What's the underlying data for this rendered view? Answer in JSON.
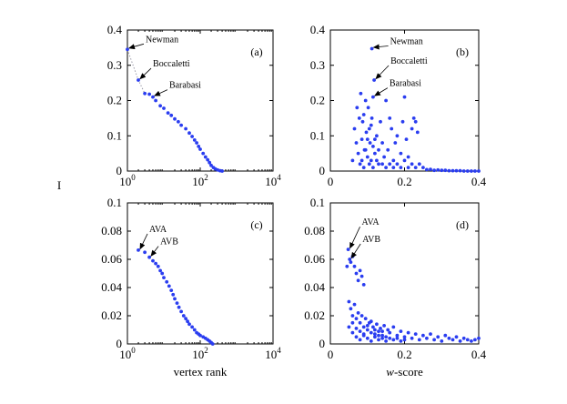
{
  "figure": {
    "ylabel": "I",
    "colors": {
      "points": "#2a3df0",
      "axis": "#000000",
      "arrow": "#000000",
      "dotted": "#9a9aa8"
    }
  },
  "chart_data": [
    {
      "id": "a",
      "panel_label": "(a)",
      "type": "scatter",
      "xscale": "log",
      "xlim": [
        1,
        10000
      ],
      "ylim": [
        0,
        0.4
      ],
      "xticks": [
        {
          "base": "10",
          "exp": "0"
        },
        {
          "base": "10",
          "exp": "2"
        },
        {
          "base": "10",
          "exp": "4"
        }
      ],
      "yticks": [
        "0",
        "0.1",
        "0.2",
        "0.3",
        "0.4"
      ],
      "xlabel": "",
      "connector_line": true,
      "annotations": [
        {
          "text": "Newman",
          "x": 1,
          "y": 0.345
        },
        {
          "text": "Boccaletti",
          "x": 2,
          "y": 0.258
        },
        {
          "text": "Barabasi",
          "x": 5,
          "y": 0.21
        }
      ],
      "points": [
        [
          1,
          0.345
        ],
        [
          2,
          0.258
        ],
        [
          3,
          0.22
        ],
        [
          4,
          0.218
        ],
        [
          5,
          0.21
        ],
        [
          6,
          0.2
        ],
        [
          8,
          0.185
        ],
        [
          10,
          0.178
        ],
        [
          13,
          0.165
        ],
        [
          16,
          0.158
        ],
        [
          20,
          0.148
        ],
        [
          25,
          0.14
        ],
        [
          30,
          0.13
        ],
        [
          40,
          0.12
        ],
        [
          50,
          0.108
        ],
        [
          60,
          0.098
        ],
        [
          70,
          0.088
        ],
        [
          80,
          0.08
        ],
        [
          90,
          0.07
        ],
        [
          100,
          0.062
        ],
        [
          120,
          0.05
        ],
        [
          140,
          0.04
        ],
        [
          160,
          0.032
        ],
        [
          180,
          0.024
        ],
        [
          200,
          0.016
        ],
        [
          230,
          0.01
        ],
        [
          260,
          0.006
        ],
        [
          300,
          0.003
        ],
        [
          350,
          0.001
        ],
        [
          400,
          0.0
        ]
      ]
    },
    {
      "id": "b",
      "panel_label": "(b)",
      "type": "scatter",
      "xscale": "linear",
      "xlim": [
        0,
        0.4
      ],
      "ylim": [
        0,
        0.4
      ],
      "xticks": [
        "0",
        "0.2",
        "0.4"
      ],
      "yticks": [
        "0",
        "0.1",
        "0.2",
        "0.3",
        "0.4"
      ],
      "xlabel": "",
      "annotations": [
        {
          "text": "Newman",
          "x": 0.112,
          "y": 0.347
        },
        {
          "text": "Boccaletti",
          "x": 0.118,
          "y": 0.258
        },
        {
          "text": "Barabasi",
          "x": 0.115,
          "y": 0.21
        }
      ],
      "points": [
        [
          0.112,
          0.347
        ],
        [
          0.118,
          0.258
        ],
        [
          0.115,
          0.21
        ],
        [
          0.06,
          0.03
        ],
        [
          0.065,
          0.12
        ],
        [
          0.07,
          0.08
        ],
        [
          0.072,
          0.18
        ],
        [
          0.075,
          0.05
        ],
        [
          0.078,
          0.15
        ],
        [
          0.08,
          0.02
        ],
        [
          0.082,
          0.22
        ],
        [
          0.085,
          0.09
        ],
        [
          0.087,
          0.14
        ],
        [
          0.09,
          0.16
        ],
        [
          0.092,
          0.06
        ],
        [
          0.095,
          0.2
        ],
        [
          0.097,
          0.11
        ],
        [
          0.1,
          0.04
        ],
        [
          0.102,
          0.18
        ],
        [
          0.105,
          0.12
        ],
        [
          0.107,
          0.08
        ],
        [
          0.11,
          0.03
        ],
        [
          0.112,
          0.15
        ],
        [
          0.115,
          0.07
        ],
        [
          0.12,
          0.05
        ],
        [
          0.125,
          0.1
        ],
        [
          0.13,
          0.02
        ],
        [
          0.135,
          0.14
        ],
        [
          0.14,
          0.08
        ],
        [
          0.145,
          0.04
        ],
        [
          0.15,
          0.2
        ],
        [
          0.155,
          0.06
        ],
        [
          0.16,
          0.15
        ],
        [
          0.165,
          0.12
        ],
        [
          0.17,
          0.03
        ],
        [
          0.175,
          0.08
        ],
        [
          0.18,
          0.1
        ],
        [
          0.19,
          0.05
        ],
        [
          0.195,
          0.14
        ],
        [
          0.2,
          0.21
        ],
        [
          0.205,
          0.09
        ],
        [
          0.21,
          0.04
        ],
        [
          0.22,
          0.12
        ],
        [
          0.225,
          0.15
        ],
        [
          0.23,
          0.14
        ],
        [
          0.235,
          0.11
        ],
        [
          0.24,
          0.02
        ],
        [
          0.25,
          0.01
        ],
        [
          0.27,
          0.005
        ],
        [
          0.29,
          0.003
        ],
        [
          0.31,
          0.002
        ],
        [
          0.33,
          0.001
        ],
        [
          0.35,
          0.001
        ],
        [
          0.37,
          0.0
        ],
        [
          0.39,
          0.0
        ],
        [
          0.085,
          0.03
        ],
        [
          0.09,
          0.01
        ],
        [
          0.095,
          0.06
        ],
        [
          0.1,
          0.09
        ],
        [
          0.105,
          0.02
        ],
        [
          0.11,
          0.13
        ],
        [
          0.115,
          0.01
        ],
        [
          0.12,
          0.09
        ],
        [
          0.125,
          0.03
        ],
        [
          0.13,
          0.06
        ],
        [
          0.14,
          0.02
        ],
        [
          0.15,
          0.01
        ],
        [
          0.16,
          0.02
        ],
        [
          0.17,
          0.01
        ],
        [
          0.18,
          0.02
        ],
        [
          0.19,
          0.01
        ],
        [
          0.2,
          0.03
        ],
        [
          0.21,
          0.01
        ],
        [
          0.22,
          0.02
        ],
        [
          0.23,
          0.01
        ],
        [
          0.26,
          0.004
        ],
        [
          0.28,
          0.002
        ],
        [
          0.3,
          0.002
        ],
        [
          0.32,
          0.001
        ],
        [
          0.34,
          0.001
        ],
        [
          0.36,
          0.0
        ],
        [
          0.38,
          0.0
        ],
        [
          0.4,
          0.0
        ]
      ]
    },
    {
      "id": "c",
      "panel_label": "(c)",
      "type": "scatter",
      "xscale": "log",
      "xlim": [
        1,
        10000
      ],
      "ylim": [
        0,
        0.1
      ],
      "xticks": [
        {
          "base": "10",
          "exp": "0"
        },
        {
          "base": "10",
          "exp": "2"
        },
        {
          "base": "10",
          "exp": "4"
        }
      ],
      "yticks": [
        "0",
        "0.02",
        "0.04",
        "0.06",
        "0.08",
        "0.1"
      ],
      "xlabel": "vertex rank",
      "annotations": [
        {
          "text": "AVA",
          "x": 2,
          "y": 0.0665
        },
        {
          "text": "AVB",
          "x": 4,
          "y": 0.0615
        }
      ],
      "points": [
        [
          2,
          0.0665
        ],
        [
          3,
          0.065
        ],
        [
          4,
          0.0615
        ],
        [
          5,
          0.059
        ],
        [
          6,
          0.057
        ],
        [
          7,
          0.055
        ],
        [
          8,
          0.052
        ],
        [
          9,
          0.05
        ],
        [
          10,
          0.047
        ],
        [
          12,
          0.044
        ],
        [
          14,
          0.041
        ],
        [
          16,
          0.038
        ],
        [
          18,
          0.035
        ],
        [
          20,
          0.032
        ],
        [
          23,
          0.029
        ],
        [
          26,
          0.026
        ],
        [
          30,
          0.023
        ],
        [
          35,
          0.02
        ],
        [
          40,
          0.018
        ],
        [
          45,
          0.016
        ],
        [
          50,
          0.014
        ],
        [
          60,
          0.012
        ],
        [
          70,
          0.01
        ],
        [
          80,
          0.008
        ],
        [
          90,
          0.007
        ],
        [
          100,
          0.006
        ],
        [
          120,
          0.005
        ],
        [
          140,
          0.004
        ],
        [
          160,
          0.003
        ],
        [
          180,
          0.002
        ],
        [
          200,
          0.001
        ],
        [
          220,
          0.0
        ]
      ]
    },
    {
      "id": "d",
      "panel_label": "(d)",
      "type": "scatter",
      "xscale": "linear",
      "xlim": [
        0,
        0.4
      ],
      "ylim": [
        0,
        0.1
      ],
      "xticks": [
        "0",
        "0.2",
        "0.4"
      ],
      "yticks": [
        "0",
        "0.02",
        "0.04",
        "0.06",
        "0.08",
        "0.1"
      ],
      "xlabel": "w-score",
      "annotations": [
        {
          "text": "AVA",
          "x": 0.048,
          "y": 0.067
        },
        {
          "text": "AVB",
          "x": 0.052,
          "y": 0.06
        }
      ],
      "points": [
        [
          0.048,
          0.067
        ],
        [
          0.052,
          0.06
        ],
        [
          0.045,
          0.055
        ],
        [
          0.055,
          0.058
        ],
        [
          0.06,
          0.062
        ],
        [
          0.065,
          0.055
        ],
        [
          0.07,
          0.05
        ],
        [
          0.075,
          0.045
        ],
        [
          0.08,
          0.052
        ],
        [
          0.085,
          0.048
        ],
        [
          0.09,
          0.042
        ],
        [
          0.05,
          0.03
        ],
        [
          0.055,
          0.025
        ],
        [
          0.06,
          0.02
        ],
        [
          0.065,
          0.028
        ],
        [
          0.07,
          0.018
        ],
        [
          0.075,
          0.022
        ],
        [
          0.08,
          0.015
        ],
        [
          0.085,
          0.02
        ],
        [
          0.09,
          0.012
        ],
        [
          0.095,
          0.018
        ],
        [
          0.1,
          0.01
        ],
        [
          0.105,
          0.015
        ],
        [
          0.11,
          0.008
        ],
        [
          0.115,
          0.012
        ],
        [
          0.12,
          0.01
        ],
        [
          0.125,
          0.014
        ],
        [
          0.13,
          0.006
        ],
        [
          0.135,
          0.011
        ],
        [
          0.14,
          0.009
        ],
        [
          0.145,
          0.013
        ],
        [
          0.15,
          0.005
        ],
        [
          0.155,
          0.01
        ],
        [
          0.16,
          0.008
        ],
        [
          0.17,
          0.012
        ],
        [
          0.18,
          0.006
        ],
        [
          0.19,
          0.009
        ],
        [
          0.2,
          0.005
        ],
        [
          0.21,
          0.008
        ],
        [
          0.22,
          0.004
        ],
        [
          0.23,
          0.007
        ],
        [
          0.24,
          0.003
        ],
        [
          0.25,
          0.006
        ],
        [
          0.26,
          0.004
        ],
        [
          0.27,
          0.007
        ],
        [
          0.28,
          0.003
        ],
        [
          0.29,
          0.005
        ],
        [
          0.3,
          0.002
        ],
        [
          0.31,
          0.006
        ],
        [
          0.32,
          0.004
        ],
        [
          0.33,
          0.003
        ],
        [
          0.34,
          0.005
        ],
        [
          0.35,
          0.002
        ],
        [
          0.36,
          0.004
        ],
        [
          0.37,
          0.003
        ],
        [
          0.38,
          0.002
        ],
        [
          0.39,
          0.003
        ],
        [
          0.4,
          0.004
        ],
        [
          0.05,
          0.012
        ],
        [
          0.06,
          0.008
        ],
        [
          0.07,
          0.005
        ],
        [
          0.08,
          0.003
        ],
        [
          0.09,
          0.006
        ],
        [
          0.1,
          0.004
        ],
        [
          0.11,
          0.002
        ],
        [
          0.12,
          0.005
        ],
        [
          0.13,
          0.003
        ],
        [
          0.14,
          0.004
        ],
        [
          0.15,
          0.002
        ],
        [
          0.06,
          0.015
        ],
        [
          0.07,
          0.011
        ],
        [
          0.08,
          0.009
        ],
        [
          0.09,
          0.007
        ],
        [
          0.1,
          0.013
        ],
        [
          0.11,
          0.016
        ],
        [
          0.12,
          0.007
        ],
        [
          0.13,
          0.009
        ],
        [
          0.14,
          0.006
        ],
        [
          0.16,
          0.004
        ],
        [
          0.17,
          0.003
        ],
        [
          0.18,
          0.004
        ],
        [
          0.19,
          0.002
        ],
        [
          0.2,
          0.003
        ]
      ]
    }
  ]
}
